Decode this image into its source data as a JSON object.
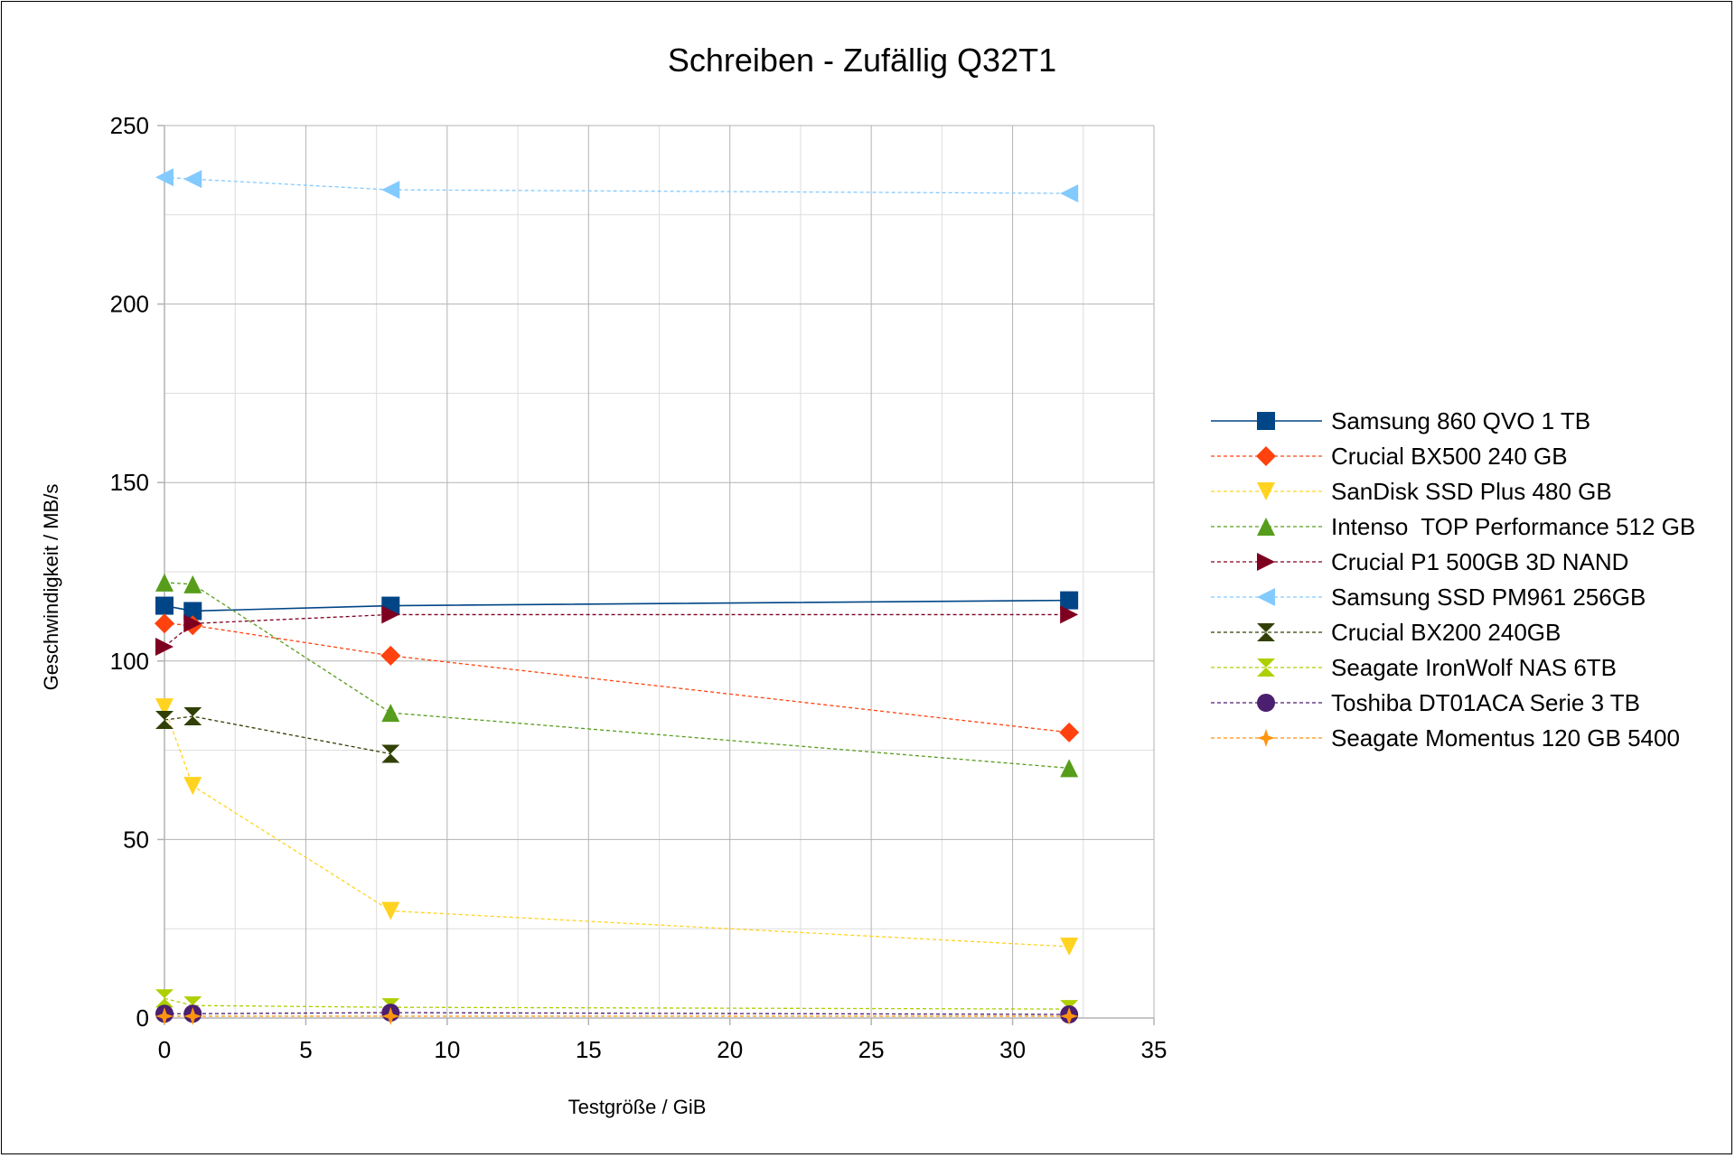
{
  "chart_data": {
    "type": "scatter",
    "title": "Schreiben - Zufällig Q32T1",
    "xlabel": "Testgröße / GiB",
    "ylabel": "Geschwindigkeit / MB/s",
    "xlim": [
      0,
      35
    ],
    "ylim": [
      0,
      250
    ],
    "xticks": [
      0,
      5,
      10,
      15,
      20,
      25,
      30,
      35
    ],
    "yticks": [
      0,
      50,
      100,
      150,
      200,
      250
    ],
    "grid": true,
    "legend_position": "right",
    "series": [
      {
        "name": "Samsung 860 QVO 1 TB",
        "color": "#004586",
        "marker": "square",
        "line": "solid",
        "x": [
          0,
          1,
          8,
          32
        ],
        "y": [
          115.5,
          114,
          115.5,
          117
        ]
      },
      {
        "name": "Crucial BX500 240 GB",
        "color": "#ff420e",
        "marker": "diamond",
        "line": "dashed",
        "x": [
          0,
          1,
          8,
          32
        ],
        "y": [
          110.5,
          110,
          101.5,
          80
        ]
      },
      {
        "name": "SanDisk SSD Plus 480 GB",
        "color": "#ffd320",
        "marker": "triangle-down",
        "line": "dashed",
        "x": [
          0,
          1,
          8,
          32
        ],
        "y": [
          87,
          65,
          30,
          20
        ]
      },
      {
        "name": "Intenso  TOP Performance 512 GB",
        "color": "#579d1c",
        "marker": "triangle-up",
        "line": "dashed",
        "x": [
          0,
          1,
          8,
          32
        ],
        "y": [
          122,
          121.5,
          85.5,
          70
        ]
      },
      {
        "name": "Crucial P1 500GB 3D NAND",
        "color": "#7e0021",
        "marker": "triangle-right",
        "line": "dashed",
        "x": [
          0,
          1,
          8,
          32
        ],
        "y": [
          104,
          110.5,
          113,
          113
        ]
      },
      {
        "name": "Samsung SSD PM961 256GB",
        "color": "#83caff",
        "marker": "triangle-left",
        "line": "dashed",
        "x": [
          0,
          1,
          8,
          32
        ],
        "y": [
          235.5,
          235,
          232,
          231
        ]
      },
      {
        "name": "Crucial BX200 240GB",
        "color": "#314004",
        "marker": "bowtie",
        "line": "dashed",
        "x": [
          0,
          1,
          8
        ],
        "y": [
          83.5,
          84.5,
          74
        ]
      },
      {
        "name": "Seagate IronWolf NAS 6TB",
        "color": "#aecf00",
        "marker": "hourglass",
        "line": "dashed",
        "x": [
          0,
          1,
          8,
          32
        ],
        "y": [
          5.5,
          3.5,
          3,
          2.5
        ]
      },
      {
        "name": "Toshiba DT01ACA Serie 3 TB",
        "color": "#4b1f6f",
        "marker": "circle",
        "line": "dashed",
        "x": [
          0,
          1,
          8,
          32
        ],
        "y": [
          1.2,
          1.2,
          1.5,
          1
        ]
      },
      {
        "name": "Seagate Momentus 120 GB 5400",
        "color": "#ff950e",
        "marker": "star",
        "line": "dashed",
        "x": [
          0,
          1,
          8,
          32
        ],
        "y": [
          0.5,
          0.5,
          0.5,
          0.5
        ]
      }
    ]
  }
}
